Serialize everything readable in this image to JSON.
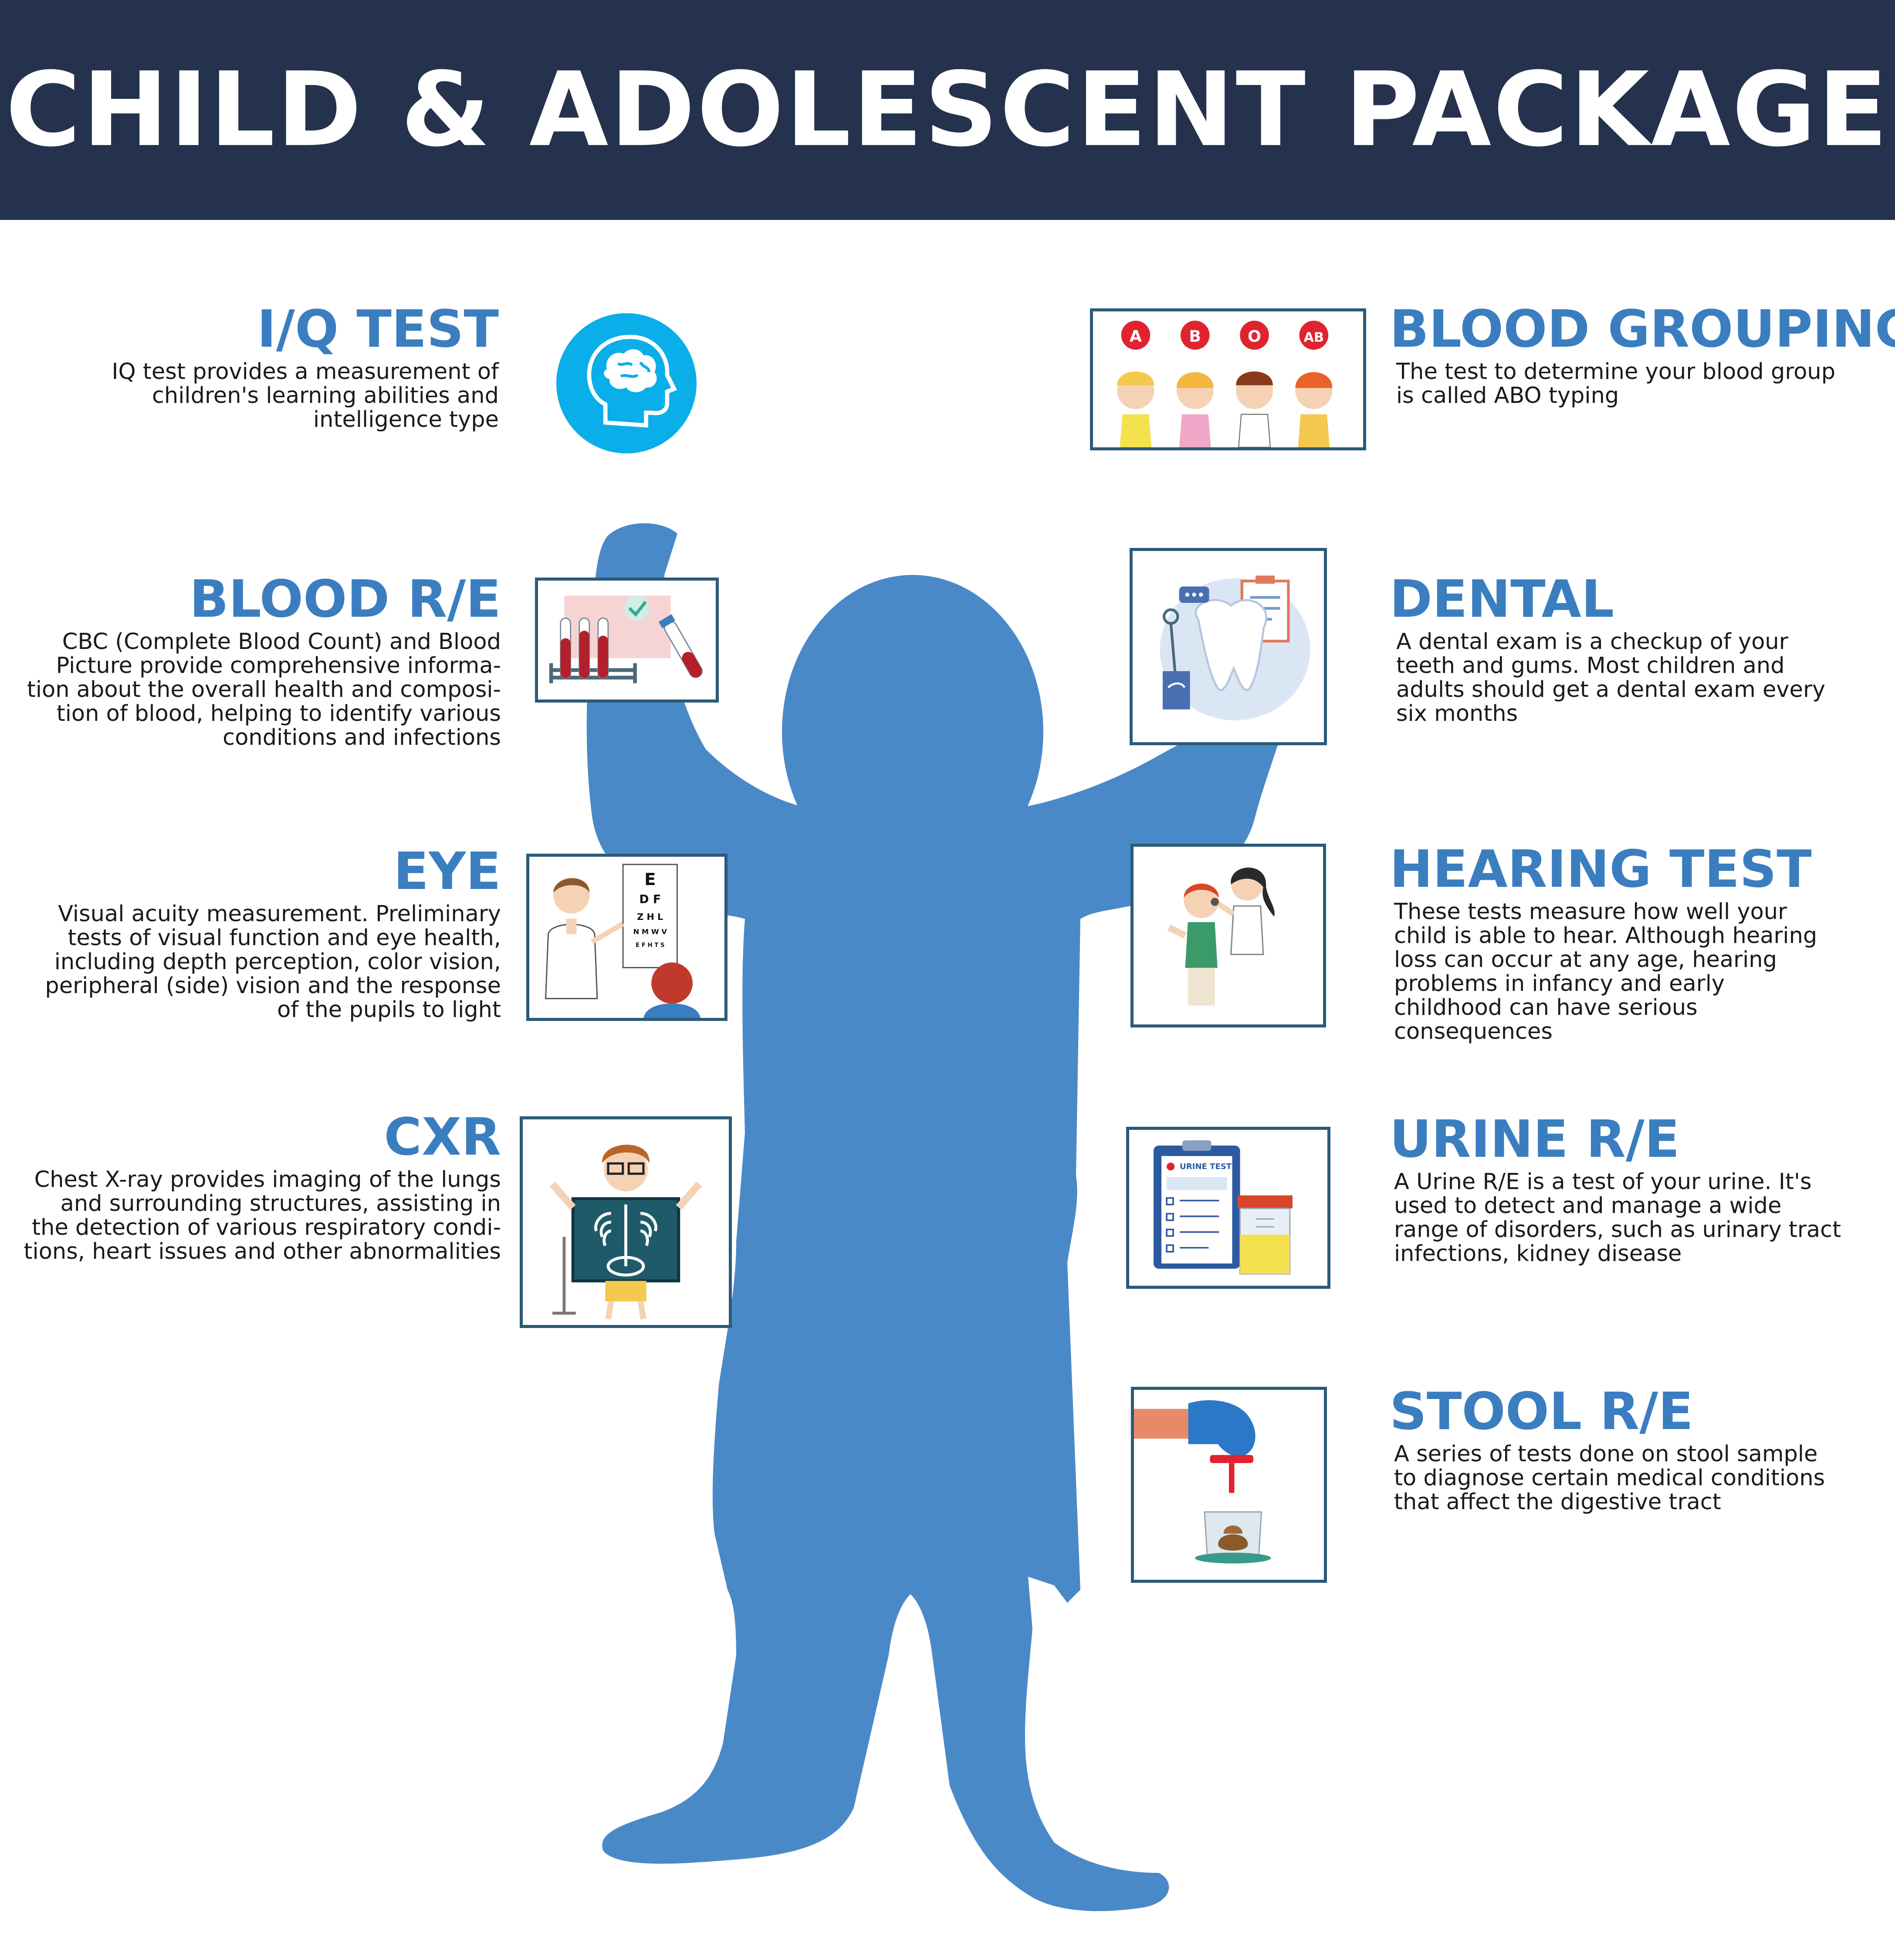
{
  "header": {
    "title": "CHILD & ADOLESCENT PACKAGE"
  },
  "colors": {
    "header_bg": "#24324d",
    "accent": "#3a7ebf",
    "silhouette": "#4a89c8",
    "card_border": "#2b5a78",
    "iq_circle": "#0aaee9"
  },
  "tests": {
    "iq": {
      "title": "I/Q TEST",
      "lines": [
        "IQ test provides a measurement of",
        "children's learning abilities and",
        "intelligence type"
      ],
      "icon": "brain-head-icon"
    },
    "blood_re": {
      "title": "BLOOD R/E",
      "lines": [
        "CBC (Complete Blood Count) and Blood",
        "Picture provide comprehensive informa-",
        "tion about the overall health and composi-",
        "tion of blood, helping to identify various",
        "conditions and infections"
      ],
      "icon": "blood-tubes-icon"
    },
    "eye": {
      "title": "EYE",
      "lines": [
        "Visual acuity measurement. Preliminary",
        "tests of visual function and eye health,",
        "including depth perception, color vision,",
        "peripheral (side) vision and the response",
        "of the pupils to light"
      ],
      "icon": "eye-chart-icon",
      "chart_rows": [
        "E",
        "D F",
        "Z H L",
        "N M W V",
        "E F H T S"
      ]
    },
    "cxr": {
      "title": "CXR",
      "lines": [
        "Chest X-ray provides imaging of the lungs",
        "and surrounding structures, assisting in",
        "the detection of various respiratory condi-",
        "tions, heart issues and other abnormalities"
      ],
      "icon": "xray-icon"
    },
    "blood_grouping": {
      "title": "BLOOD GROUPING",
      "lines": [
        "The test to determine your blood group",
        "is called ABO typing"
      ],
      "icon": "blood-group-kids-icon",
      "groups": [
        "A",
        "B",
        "O",
        "AB"
      ]
    },
    "dental": {
      "title": "DENTAL",
      "lines": [
        "A dental exam is a checkup of your",
        "teeth and gums. Most children and",
        "adults should get a dental exam every",
        "six months"
      ],
      "icon": "tooth-icon"
    },
    "hearing": {
      "title": "HEARING TEST",
      "lines": [
        "These tests measure how well your",
        "child is able to hear. Although hearing",
        "loss can occur at any age, hearing",
        "problems in infancy and early",
        "childhood can have serious",
        "consequences"
      ],
      "icon": "hearing-exam-icon"
    },
    "urine": {
      "title": "URINE R/E",
      "lines": [
        "A Urine R/E is a test of your urine. It's",
        "used to detect and manage a wide",
        "range of disorders, such as urinary tract",
        "infections, kidney disease"
      ],
      "icon": "urine-test-icon",
      "clipboard_label": "URINE TEST"
    },
    "stool": {
      "title": "STOOL R/E",
      "lines": [
        "A series of tests done on stool sample",
        "to diagnose certain medical conditions",
        "that affect the digestive tract"
      ],
      "icon": "stool-sample-icon"
    }
  }
}
